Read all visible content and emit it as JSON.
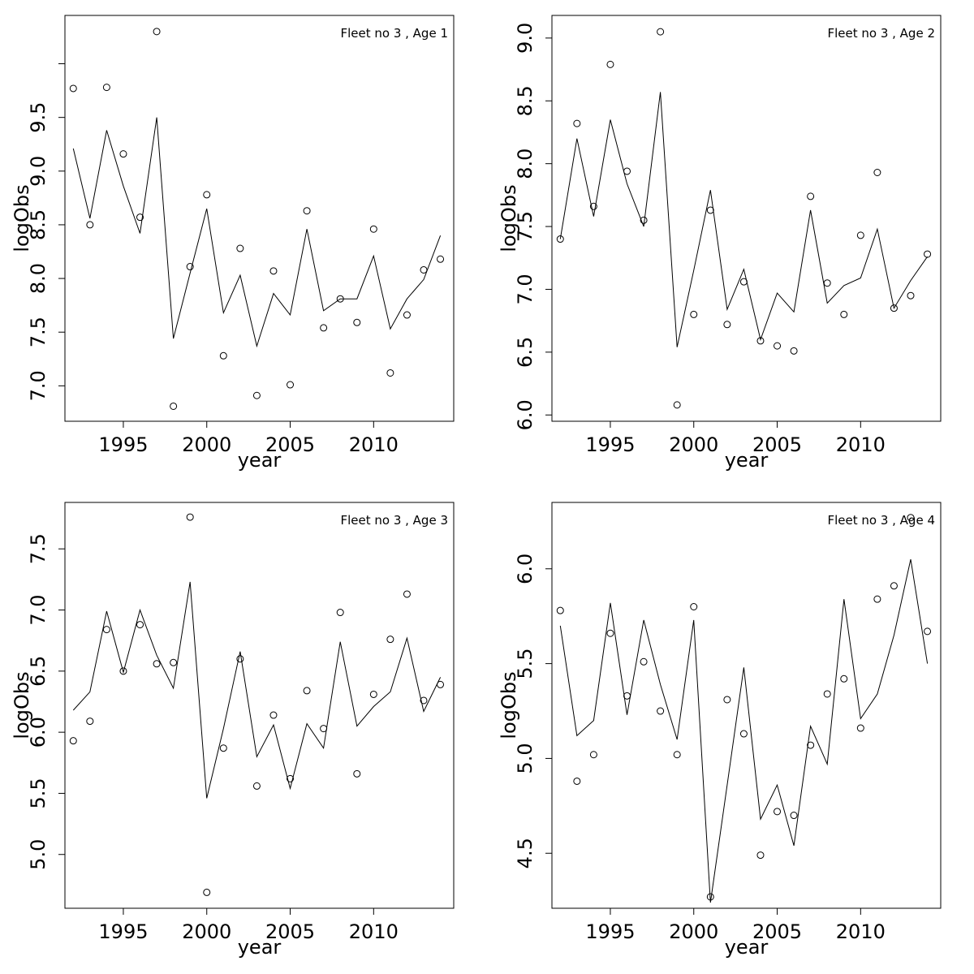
{
  "chart_data": [
    {
      "type": "line",
      "title": "Fleet no 3 , Age 1",
      "xlabel": "year",
      "ylabel": "logObs",
      "xlim": [
        1991.5,
        2014.8
      ],
      "ylim": [
        6.67,
        10.45
      ],
      "xticks": [
        1995,
        2000,
        2005,
        2010
      ],
      "xticklabels": [
        "1995",
        "2000",
        "2005",
        "2010"
      ],
      "yticks": [
        7.0,
        7.5,
        8.0,
        8.5,
        9.0,
        9.5,
        10.0
      ],
      "yticklabels": [
        "7.0",
        "7.5",
        "8.0",
        "8.5",
        "9.0",
        "9.5",
        ""
      ],
      "x": [
        1992,
        1993,
        1994,
        1995,
        1996,
        1997,
        1998,
        1999,
        2000,
        2001,
        2002,
        2003,
        2004,
        2005,
        2006,
        2007,
        2008,
        2009,
        2010,
        2011,
        2012,
        2013,
        2014
      ],
      "series": [
        {
          "kind": "points",
          "values": [
            9.77,
            8.5,
            9.78,
            9.16,
            8.57,
            10.3,
            6.81,
            8.11,
            8.78,
            7.28,
            8.28,
            6.91,
            8.07,
            7.01,
            8.63,
            7.54,
            7.81,
            7.59,
            8.46,
            7.12,
            7.66,
            8.08,
            8.18
          ]
        },
        {
          "kind": "line",
          "values": [
            9.21,
            8.56,
            9.38,
            8.86,
            8.42,
            9.5,
            7.44,
            8.05,
            8.65,
            7.68,
            8.03,
            7.37,
            7.86,
            7.66,
            8.46,
            7.7,
            7.81,
            7.81,
            8.21,
            7.53,
            7.81,
            7.99,
            8.4
          ]
        }
      ]
    },
    {
      "type": "line",
      "title": "Fleet no 3 , Age 2",
      "xlabel": "year",
      "ylabel": "logObs",
      "xlim": [
        1991.5,
        2014.8
      ],
      "ylim": [
        5.95,
        9.18
      ],
      "xticks": [
        1995,
        2000,
        2005,
        2010
      ],
      "xticklabels": [
        "1995",
        "2000",
        "2005",
        "2010"
      ],
      "yticks": [
        6.0,
        6.5,
        7.0,
        7.5,
        8.0,
        8.5,
        9.0
      ],
      "yticklabels": [
        "6.0",
        "6.5",
        "7.0",
        "7.5",
        "8.0",
        "8.5",
        "9.0"
      ],
      "x": [
        1992,
        1993,
        1994,
        1995,
        1996,
        1997,
        1998,
        1999,
        2000,
        2001,
        2002,
        2003,
        2004,
        2005,
        2006,
        2007,
        2008,
        2009,
        2010,
        2011,
        2012,
        2013,
        2014
      ],
      "series": [
        {
          "kind": "points",
          "values": [
            7.4,
            8.32,
            7.66,
            8.79,
            7.94,
            7.55,
            9.05,
            6.08,
            6.8,
            7.63,
            6.72,
            7.06,
            6.59,
            6.55,
            6.51,
            7.74,
            7.05,
            6.8,
            7.43,
            7.93,
            6.85,
            6.95,
            7.28
          ]
        },
        {
          "kind": "line",
          "values": [
            7.4,
            8.2,
            7.58,
            8.35,
            7.84,
            7.5,
            8.57,
            6.54,
            7.15,
            7.79,
            6.84,
            7.16,
            6.6,
            6.97,
            6.82,
            7.63,
            6.89,
            7.03,
            7.09,
            7.48,
            6.85,
            7.07,
            7.26
          ]
        }
      ]
    },
    {
      "type": "line",
      "title": "Fleet no 3 , Age 3",
      "xlabel": "year",
      "ylabel": "logObs",
      "xlim": [
        1991.5,
        2014.8
      ],
      "ylim": [
        4.56,
        7.88
      ],
      "xticks": [
        1995,
        2000,
        2005,
        2010
      ],
      "xticklabels": [
        "1995",
        "2000",
        "2005",
        "2010"
      ],
      "yticks": [
        5.0,
        5.5,
        6.0,
        6.5,
        7.0,
        7.5
      ],
      "yticklabels": [
        "5.0",
        "5.5",
        "6.0",
        "6.5",
        "7.0",
        "7.5"
      ],
      "x": [
        1992,
        1993,
        1994,
        1995,
        1996,
        1997,
        1998,
        1999,
        2000,
        2001,
        2002,
        2003,
        2004,
        2005,
        2006,
        2007,
        2008,
        2009,
        2010,
        2011,
        2012,
        2013,
        2014
      ],
      "series": [
        {
          "kind": "points",
          "values": [
            5.93,
            6.09,
            6.84,
            6.5,
            6.88,
            6.56,
            6.57,
            7.76,
            4.69,
            5.87,
            6.6,
            5.56,
            6.14,
            5.62,
            6.34,
            6.03,
            6.98,
            5.66,
            6.31,
            6.76,
            7.13,
            6.26,
            6.39
          ]
        },
        {
          "kind": "line",
          "values": [
            6.18,
            6.33,
            6.99,
            6.49,
            7.0,
            6.63,
            6.36,
            7.23,
            5.46,
            6.03,
            6.66,
            5.8,
            6.06,
            5.54,
            6.07,
            5.87,
            6.74,
            6.05,
            6.21,
            6.33,
            6.77,
            6.17,
            6.45
          ]
        }
      ]
    },
    {
      "type": "line",
      "title": "Fleet no 3 , Age 4",
      "xlabel": "year",
      "ylabel": "logObs",
      "xlim": [
        1991.5,
        2014.8
      ],
      "ylim": [
        4.21,
        6.35
      ],
      "xticks": [
        1995,
        2000,
        2005,
        2010
      ],
      "xticklabels": [
        "1995",
        "2000",
        "2005",
        "2010"
      ],
      "yticks": [
        4.5,
        5.0,
        5.5,
        6.0
      ],
      "yticklabels": [
        "4.5",
        "5.0",
        "5.5",
        "6.0"
      ],
      "x": [
        1992,
        1993,
        1994,
        1995,
        1996,
        1997,
        1998,
        1999,
        2000,
        2001,
        2002,
        2003,
        2004,
        2005,
        2006,
        2007,
        2008,
        2009,
        2010,
        2011,
        2012,
        2013,
        2014
      ],
      "series": [
        {
          "kind": "points",
          "values": [
            5.78,
            4.88,
            5.02,
            5.66,
            5.33,
            5.51,
            5.25,
            5.02,
            5.8,
            4.27,
            5.31,
            5.13,
            4.49,
            4.72,
            4.7,
            5.07,
            5.34,
            5.42,
            5.16,
            5.84,
            5.91,
            6.27,
            5.67
          ]
        },
        {
          "kind": "line",
          "values": [
            5.7,
            5.12,
            5.2,
            5.82,
            5.23,
            5.73,
            5.39,
            5.1,
            5.73,
            4.24,
            4.86,
            5.48,
            4.68,
            4.86,
            4.54,
            5.17,
            4.97,
            5.84,
            5.21,
            5.34,
            5.65,
            6.05,
            5.5
          ]
        }
      ]
    }
  ]
}
